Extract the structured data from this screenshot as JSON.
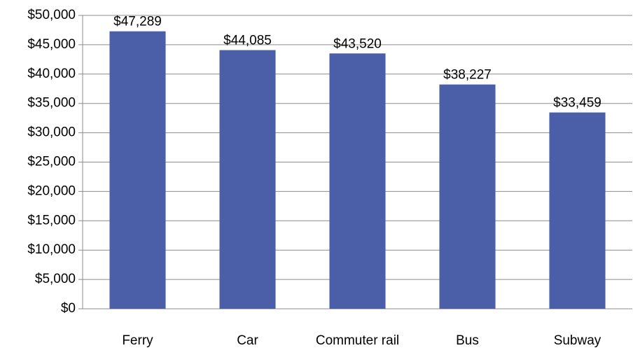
{
  "chart_data": {
    "type": "bar",
    "categories": [
      "Ferry",
      "Car",
      "Commuter rail",
      "Bus",
      "Subway"
    ],
    "values": [
      47289,
      44085,
      43520,
      38227,
      33459
    ],
    "value_labels": [
      "$47,289",
      "$44,085",
      "$43,520",
      "$38,227",
      "$33,459"
    ],
    "color": "#4a5fa8",
    "ylim": [
      0,
      50000
    ],
    "yticks": [
      {
        "value": 0,
        "label": "$0"
      },
      {
        "value": 5000,
        "label": "$5,000"
      },
      {
        "value": 10000,
        "label": "$10,000"
      },
      {
        "value": 15000,
        "label": "$15,000"
      },
      {
        "value": 20000,
        "label": "$20,000"
      },
      {
        "value": 25000,
        "label": "$25,000"
      },
      {
        "value": 30000,
        "label": "$30,000"
      },
      {
        "value": 35000,
        "label": "$35,000"
      },
      {
        "value": 40000,
        "label": "$40,000"
      },
      {
        "value": 45000,
        "label": "$45,000"
      },
      {
        "value": 50000,
        "label": "$50,000"
      }
    ],
    "grid": true
  }
}
